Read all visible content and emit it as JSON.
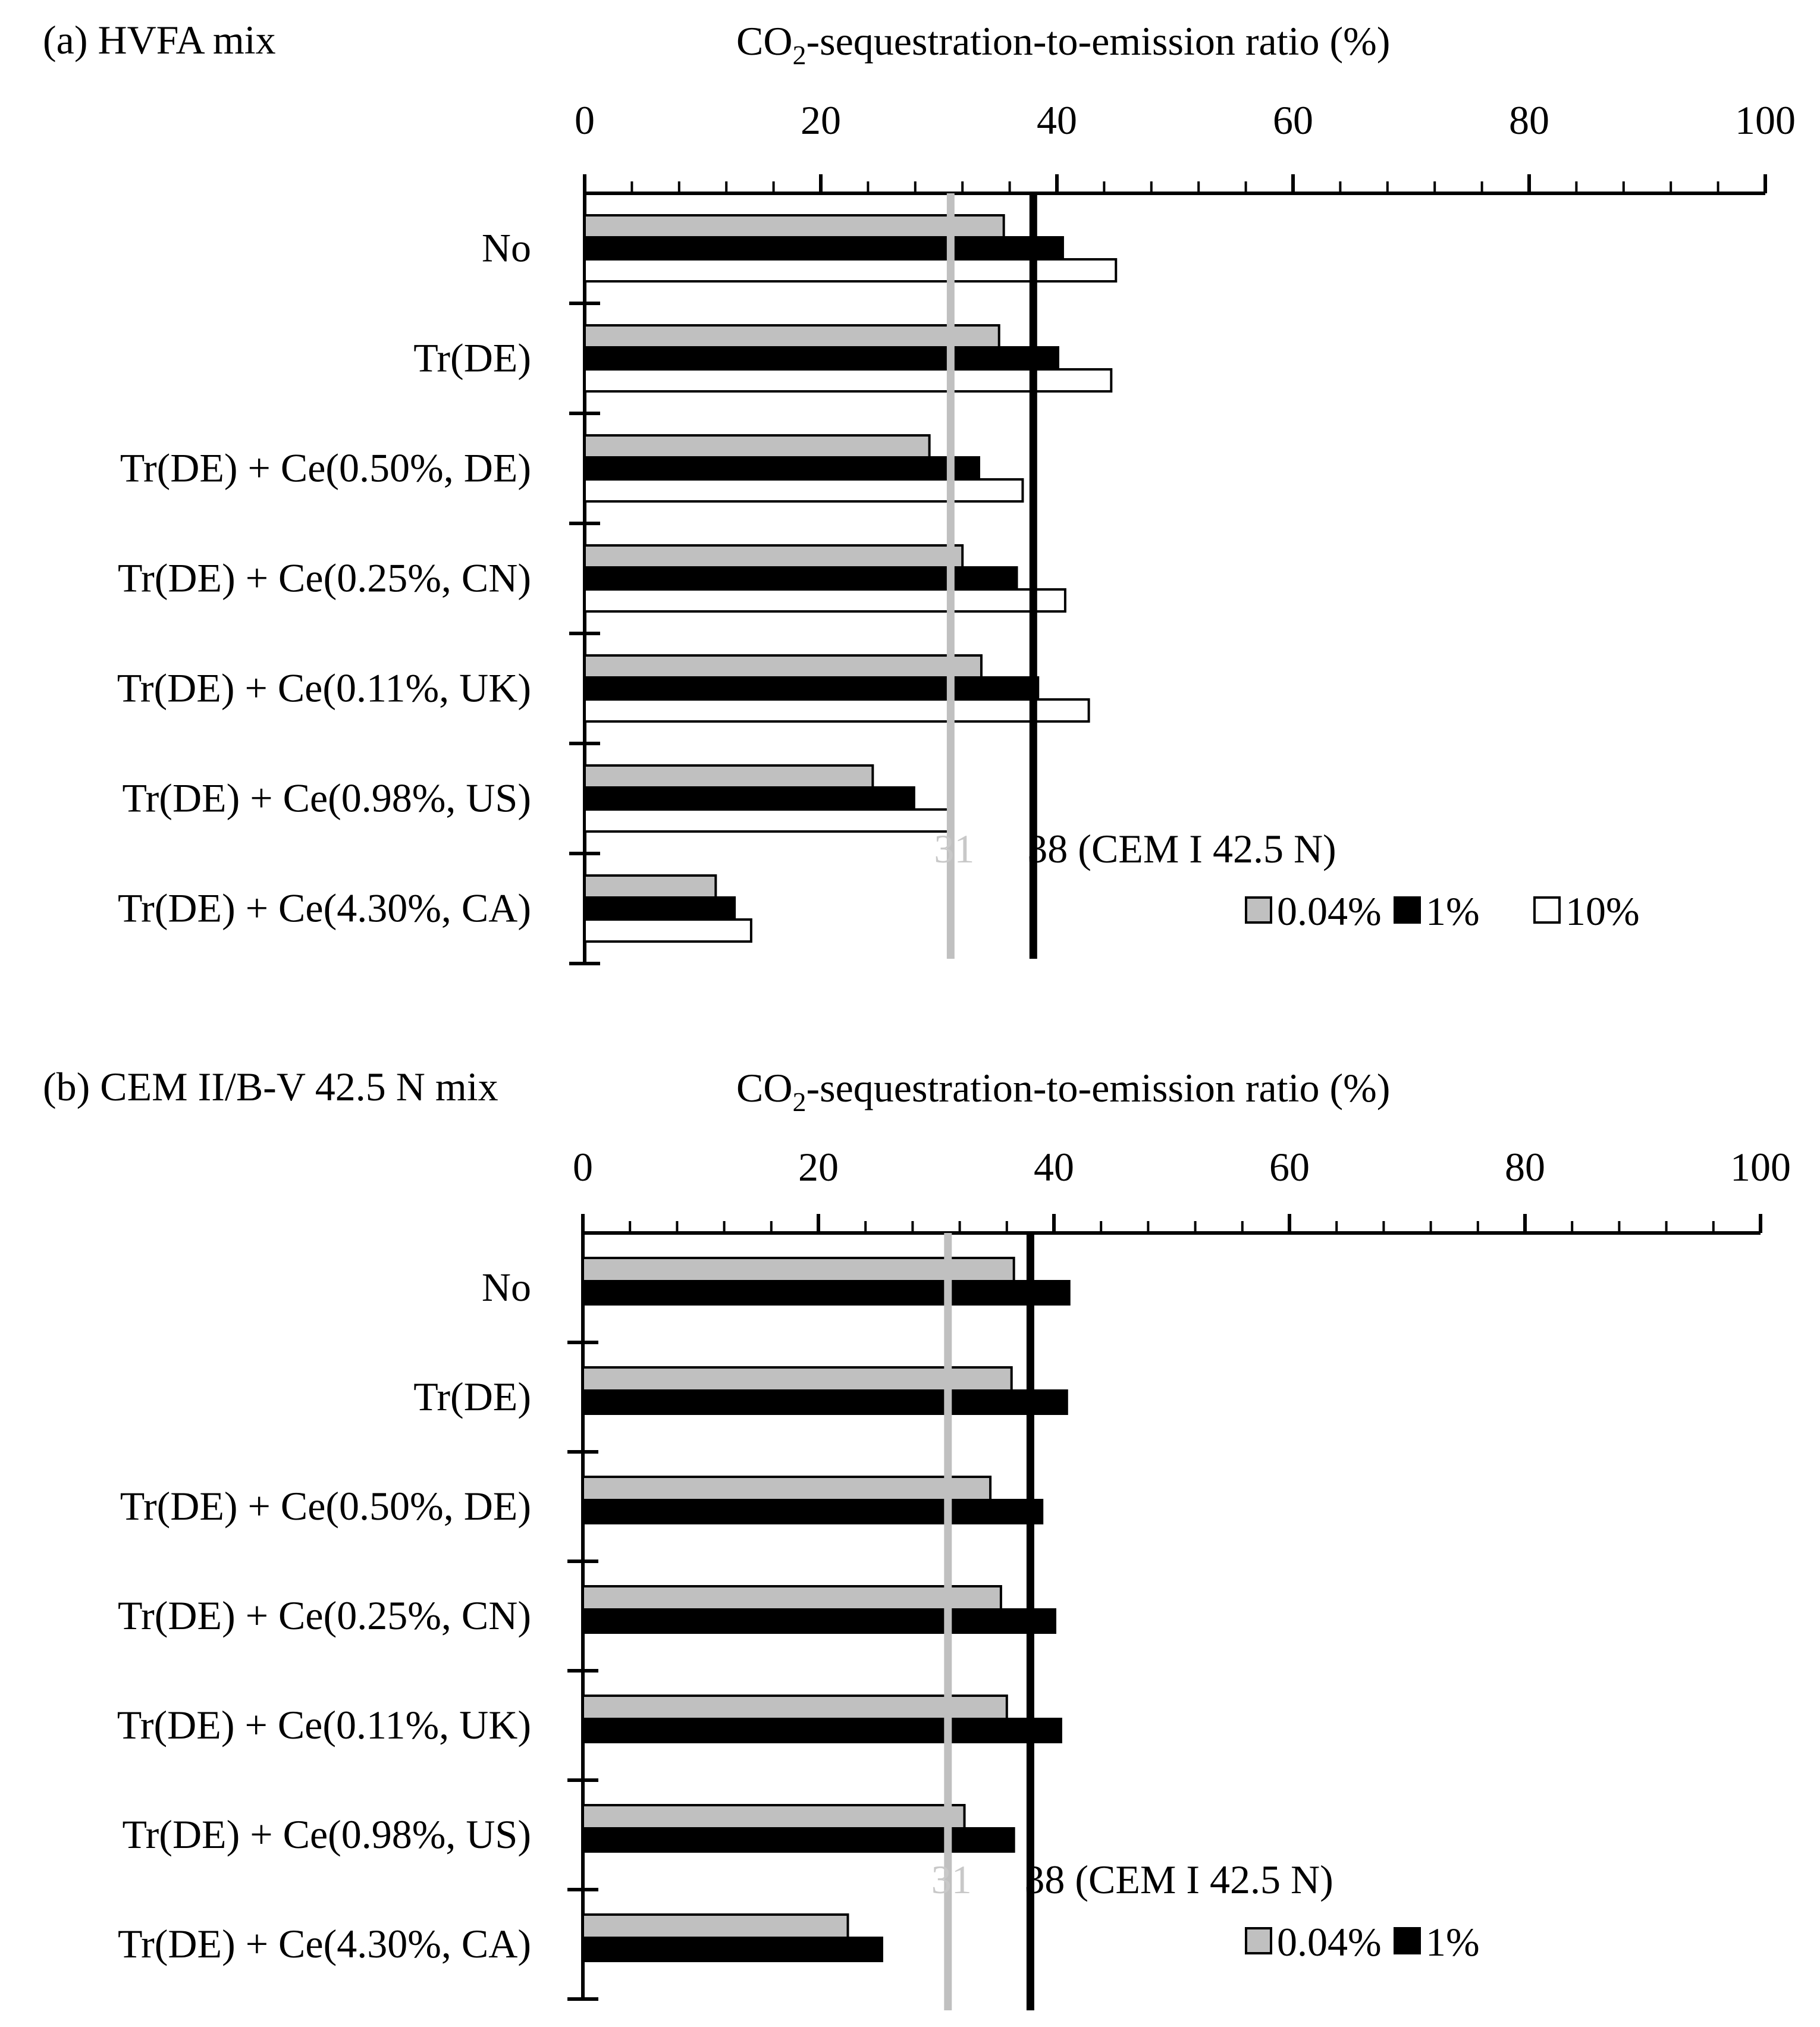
{
  "colors": {
    "gray_fill": "#c0c0c0",
    "black_fill": "#000000",
    "white_fill": "#ffffff",
    "ref_31_line": "#c0c0c0",
    "ref_38_line": "#000000",
    "ref_31_text": "#c8c8c8",
    "bar_stroke": "#000000"
  },
  "chart_data": [
    {
      "type": "bar",
      "orientation": "horizontal",
      "panel_label": "(a)  HVFA mix",
      "xlabel_pre": "CO",
      "xlabel_sub": "2",
      "xlabel_post": "-sequestration-to-emission ratio (%)",
      "xlim": [
        0,
        100
      ],
      "xticks": [
        0,
        20,
        40,
        60,
        80,
        100
      ],
      "categories": [
        "No",
        "Tr(DE)",
        "Tr(DE) + Ce(0.50%, DE)",
        "Tr(DE) + Ce(0.25%, CN)",
        "Tr(DE) + Ce(0.11%, UK)",
        "Tr(DE) + Ce(0.98%, US)",
        "Tr(DE) + Ce(4.30%, CA)"
      ],
      "series": [
        {
          "name": "0.04%",
          "fill": "gray",
          "values": [
            35.5,
            35.1,
            29.2,
            32.0,
            33.6,
            24.4,
            11.1
          ]
        },
        {
          "name": "1%",
          "fill": "black",
          "values": [
            40.5,
            40.1,
            33.4,
            36.6,
            38.4,
            27.9,
            12.7
          ]
        },
        {
          "name": "10%",
          "fill": "white",
          "values": [
            45.0,
            44.6,
            37.1,
            40.7,
            42.7,
            30.9,
            14.1
          ]
        }
      ],
      "reference_lines": [
        {
          "value": 31,
          "label": "31",
          "style": "gray"
        },
        {
          "value": 38,
          "label": "38 (CEM I 42.5 N)",
          "style": "black"
        }
      ],
      "legend": [
        "0.04%",
        "1%",
        "10%"
      ],
      "legend_position": "bottom-right"
    },
    {
      "type": "bar",
      "orientation": "horizontal",
      "panel_label": "(b)  CEM II/B-V 42.5 N mix",
      "xlabel_pre": "CO",
      "xlabel_sub": "2",
      "xlabel_post": "-sequestration-to-emission ratio (%)",
      "xlim": [
        0,
        100
      ],
      "xticks": [
        0,
        20,
        40,
        60,
        80,
        100
      ],
      "categories": [
        "No",
        "Tr(DE)",
        "Tr(DE) + Ce(0.50%, DE)",
        "Tr(DE) + Ce(0.25%, CN)",
        "Tr(DE) + Ce(0.11%, UK)",
        "Tr(DE) + Ce(0.98%, US)",
        "Tr(DE) + Ce(4.30%, CA)"
      ],
      "series": [
        {
          "name": "0.04%",
          "fill": "gray",
          "values": [
            36.6,
            36.4,
            34.6,
            35.5,
            36.0,
            32.4,
            22.5
          ]
        },
        {
          "name": "1%",
          "fill": "black",
          "values": [
            41.3,
            41.1,
            39.0,
            40.1,
            40.6,
            36.6,
            25.4
          ]
        }
      ],
      "reference_lines": [
        {
          "value": 31,
          "label": "31",
          "style": "gray"
        },
        {
          "value": 38,
          "label": "38 (CEM I 42.5 N)",
          "style": "black"
        }
      ],
      "legend": [
        "0.04%",
        "1%"
      ],
      "legend_position": "bottom-right"
    }
  ]
}
